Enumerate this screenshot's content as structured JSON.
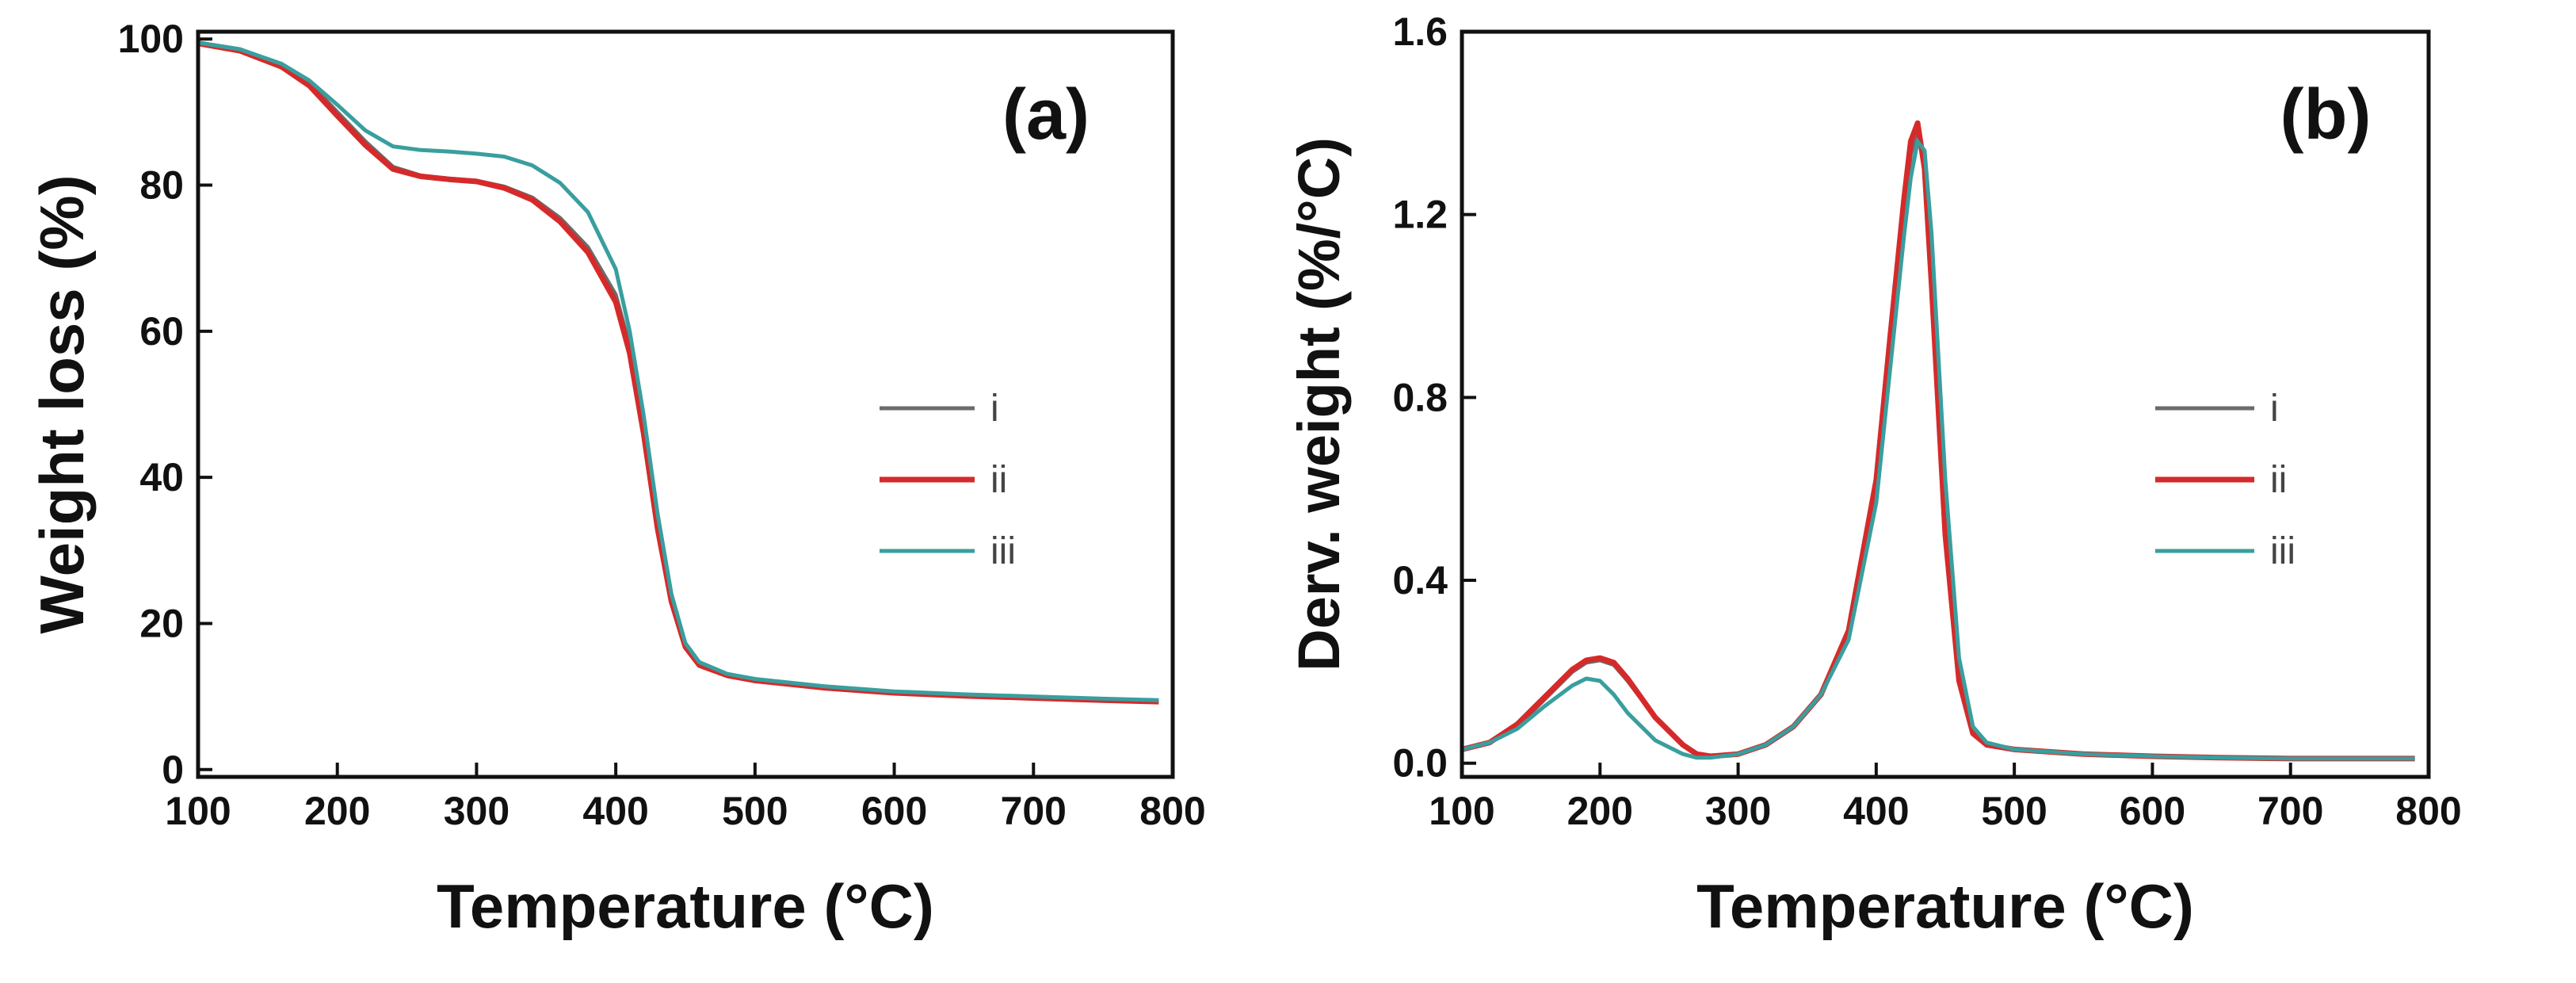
{
  "chart_data": [
    {
      "type": "line",
      "panel_label": "(a)",
      "xlabel": "Temperature (°C)",
      "ylabel": "Weight loss (%)",
      "xlim": [
        100,
        800
      ],
      "ylim": [
        -1,
        101
      ],
      "xticks": [
        100,
        200,
        300,
        400,
        500,
        600,
        700,
        800
      ],
      "yticks": [
        0,
        20,
        40,
        60,
        80,
        100
      ],
      "legend_position": "center-right",
      "series": [
        {
          "name": "i",
          "color": "#6b6b6b",
          "x": [
            100,
            130,
            160,
            180,
            200,
            220,
            240,
            260,
            280,
            300,
            320,
            340,
            360,
            380,
            400,
            410,
            420,
            430,
            440,
            450,
            460,
            480,
            500,
            550,
            600,
            650,
            700,
            750,
            790
          ],
          "y": [
            99.5,
            98.6,
            96.5,
            94.0,
            90.0,
            86.0,
            82.5,
            81.3,
            80.9,
            80.6,
            79.8,
            78.3,
            75.5,
            71.5,
            65.0,
            58.0,
            47.0,
            34.0,
            23.5,
            17.0,
            14.5,
            13.0,
            12.3,
            11.3,
            10.6,
            10.2,
            9.9,
            9.6,
            9.4
          ]
        },
        {
          "name": "ii",
          "color": "#d62a2a",
          "x": [
            100,
            130,
            160,
            180,
            200,
            220,
            240,
            260,
            280,
            300,
            320,
            340,
            360,
            380,
            400,
            410,
            420,
            430,
            440,
            450,
            460,
            480,
            500,
            550,
            600,
            650,
            700,
            750,
            790
          ],
          "y": [
            99.4,
            98.4,
            96.2,
            93.6,
            89.5,
            85.5,
            82.2,
            81.2,
            80.8,
            80.5,
            79.6,
            78.0,
            75.0,
            70.8,
            64.0,
            57.0,
            46.0,
            33.0,
            23.0,
            16.8,
            14.3,
            12.9,
            12.2,
            11.2,
            10.5,
            10.1,
            9.8,
            9.5,
            9.3
          ]
        },
        {
          "name": "iii",
          "color": "#3a9e9e",
          "x": [
            100,
            130,
            160,
            180,
            200,
            220,
            240,
            260,
            280,
            300,
            320,
            340,
            360,
            380,
            400,
            410,
            420,
            430,
            440,
            450,
            460,
            480,
            500,
            550,
            600,
            650,
            700,
            750,
            790
          ],
          "y": [
            99.5,
            98.6,
            96.6,
            94.3,
            91.0,
            87.5,
            85.3,
            84.8,
            84.6,
            84.3,
            83.9,
            82.7,
            80.3,
            76.3,
            68.5,
            60.0,
            48.5,
            35.0,
            24.0,
            17.3,
            14.7,
            13.1,
            12.4,
            11.4,
            10.7,
            10.3,
            10.0,
            9.7,
            9.5
          ]
        }
      ]
    },
    {
      "type": "line",
      "panel_label": "(b)",
      "xlabel": "Temperature (°C)",
      "ylabel": "Derv. weight (%/°C)",
      "xlim": [
        100,
        800
      ],
      "ylim": [
        -0.03,
        1.6
      ],
      "xticks": [
        100,
        200,
        300,
        400,
        500,
        600,
        700,
        800
      ],
      "yticks": [
        "0.0",
        "0.4",
        "0.8",
        "1.2",
        "1.6"
      ],
      "legend_position": "center-right",
      "series": [
        {
          "name": "i",
          "color": "#6b6b6b",
          "x": [
            100,
            120,
            140,
            160,
            180,
            190,
            200,
            210,
            220,
            240,
            260,
            270,
            280,
            300,
            320,
            340,
            360,
            380,
            400,
            410,
            420,
            425,
            430,
            435,
            440,
            450,
            460,
            470,
            480,
            500,
            550,
            600,
            650,
            700,
            790
          ],
          "y": [
            0.03,
            0.045,
            0.08,
            0.14,
            0.2,
            0.22,
            0.225,
            0.215,
            0.18,
            0.1,
            0.04,
            0.02,
            0.015,
            0.02,
            0.04,
            0.08,
            0.15,
            0.28,
            0.6,
            0.9,
            1.2,
            1.33,
            1.39,
            1.32,
            1.1,
            0.55,
            0.2,
            0.07,
            0.04,
            0.03,
            0.02,
            0.015,
            0.012,
            0.01,
            0.01
          ]
        },
        {
          "name": "ii",
          "color": "#d62a2a",
          "x": [
            100,
            120,
            140,
            160,
            180,
            190,
            200,
            210,
            220,
            240,
            260,
            270,
            280,
            300,
            320,
            340,
            360,
            380,
            400,
            410,
            420,
            425,
            430,
            435,
            440,
            450,
            460,
            470,
            480,
            500,
            550,
            600,
            650,
            700,
            790
          ],
          "y": [
            0.03,
            0.045,
            0.085,
            0.145,
            0.205,
            0.225,
            0.23,
            0.22,
            0.185,
            0.1,
            0.04,
            0.02,
            0.015,
            0.02,
            0.04,
            0.08,
            0.15,
            0.29,
            0.62,
            0.93,
            1.23,
            1.36,
            1.4,
            1.3,
            1.05,
            0.5,
            0.18,
            0.065,
            0.04,
            0.03,
            0.02,
            0.015,
            0.012,
            0.01,
            0.01
          ]
        },
        {
          "name": "iii",
          "color": "#3a9e9e",
          "x": [
            100,
            120,
            140,
            160,
            180,
            190,
            200,
            210,
            220,
            240,
            260,
            270,
            280,
            300,
            320,
            340,
            360,
            380,
            400,
            410,
            420,
            425,
            430,
            435,
            440,
            450,
            460,
            470,
            480,
            500,
            550,
            600,
            650,
            700,
            790
          ],
          "y": [
            0.03,
            0.045,
            0.075,
            0.125,
            0.17,
            0.185,
            0.18,
            0.15,
            0.11,
            0.05,
            0.02,
            0.012,
            0.012,
            0.02,
            0.04,
            0.08,
            0.15,
            0.27,
            0.57,
            0.86,
            1.15,
            1.28,
            1.36,
            1.34,
            1.16,
            0.62,
            0.23,
            0.08,
            0.045,
            0.03,
            0.02,
            0.015,
            0.012,
            0.01,
            0.01
          ]
        }
      ]
    }
  ]
}
